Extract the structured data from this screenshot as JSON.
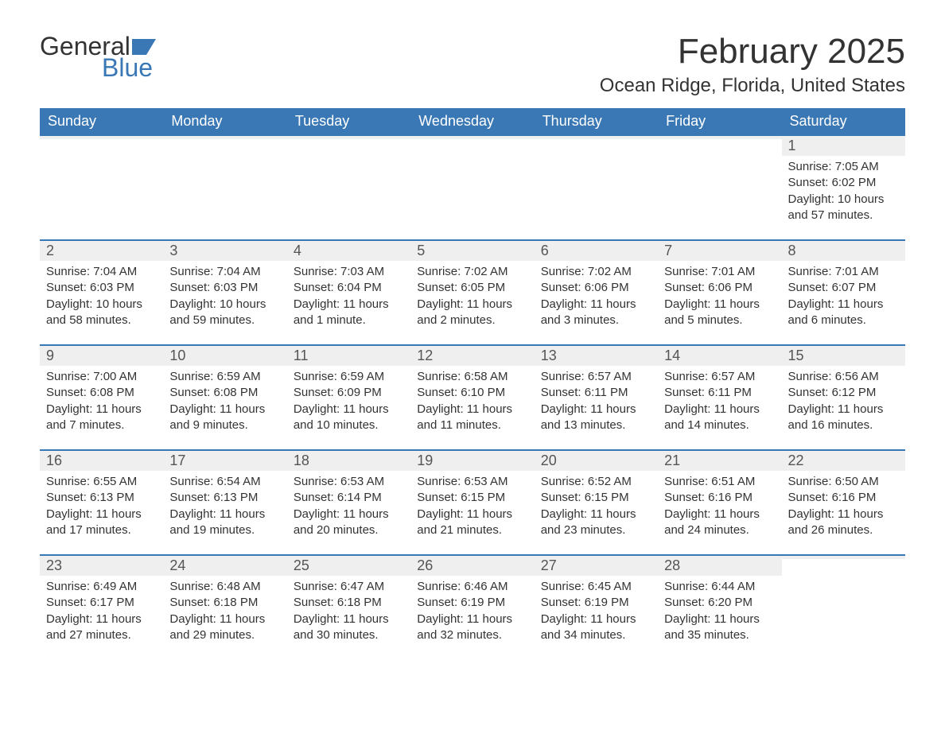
{
  "brand": {
    "word1": "General",
    "word2": "Blue",
    "flag_color": "#3a78b5"
  },
  "title": "February 2025",
  "location": "Ocean Ridge, Florida, United States",
  "colors": {
    "header_bg": "#3a78b5",
    "header_text": "#ffffff",
    "daynum_bg": "#efefef",
    "row_border": "#3a78b5",
    "body_text": "#333333"
  },
  "weekdays": [
    "Sunday",
    "Monday",
    "Tuesday",
    "Wednesday",
    "Thursday",
    "Friday",
    "Saturday"
  ],
  "weeks": [
    [
      {
        "empty": true
      },
      {
        "empty": true
      },
      {
        "empty": true
      },
      {
        "empty": true
      },
      {
        "empty": true
      },
      {
        "empty": true
      },
      {
        "day": "1",
        "sunrise": "Sunrise: 7:05 AM",
        "sunset": "Sunset: 6:02 PM",
        "daylight": "Daylight: 10 hours and 57 minutes."
      }
    ],
    [
      {
        "day": "2",
        "sunrise": "Sunrise: 7:04 AM",
        "sunset": "Sunset: 6:03 PM",
        "daylight": "Daylight: 10 hours and 58 minutes."
      },
      {
        "day": "3",
        "sunrise": "Sunrise: 7:04 AM",
        "sunset": "Sunset: 6:03 PM",
        "daylight": "Daylight: 10 hours and 59 minutes."
      },
      {
        "day": "4",
        "sunrise": "Sunrise: 7:03 AM",
        "sunset": "Sunset: 6:04 PM",
        "daylight": "Daylight: 11 hours and 1 minute."
      },
      {
        "day": "5",
        "sunrise": "Sunrise: 7:02 AM",
        "sunset": "Sunset: 6:05 PM",
        "daylight": "Daylight: 11 hours and 2 minutes."
      },
      {
        "day": "6",
        "sunrise": "Sunrise: 7:02 AM",
        "sunset": "Sunset: 6:06 PM",
        "daylight": "Daylight: 11 hours and 3 minutes."
      },
      {
        "day": "7",
        "sunrise": "Sunrise: 7:01 AM",
        "sunset": "Sunset: 6:06 PM",
        "daylight": "Daylight: 11 hours and 5 minutes."
      },
      {
        "day": "8",
        "sunrise": "Sunrise: 7:01 AM",
        "sunset": "Sunset: 6:07 PM",
        "daylight": "Daylight: 11 hours and 6 minutes."
      }
    ],
    [
      {
        "day": "9",
        "sunrise": "Sunrise: 7:00 AM",
        "sunset": "Sunset: 6:08 PM",
        "daylight": "Daylight: 11 hours and 7 minutes."
      },
      {
        "day": "10",
        "sunrise": "Sunrise: 6:59 AM",
        "sunset": "Sunset: 6:08 PM",
        "daylight": "Daylight: 11 hours and 9 minutes."
      },
      {
        "day": "11",
        "sunrise": "Sunrise: 6:59 AM",
        "sunset": "Sunset: 6:09 PM",
        "daylight": "Daylight: 11 hours and 10 minutes."
      },
      {
        "day": "12",
        "sunrise": "Sunrise: 6:58 AM",
        "sunset": "Sunset: 6:10 PM",
        "daylight": "Daylight: 11 hours and 11 minutes."
      },
      {
        "day": "13",
        "sunrise": "Sunrise: 6:57 AM",
        "sunset": "Sunset: 6:11 PM",
        "daylight": "Daylight: 11 hours and 13 minutes."
      },
      {
        "day": "14",
        "sunrise": "Sunrise: 6:57 AM",
        "sunset": "Sunset: 6:11 PM",
        "daylight": "Daylight: 11 hours and 14 minutes."
      },
      {
        "day": "15",
        "sunrise": "Sunrise: 6:56 AM",
        "sunset": "Sunset: 6:12 PM",
        "daylight": "Daylight: 11 hours and 16 minutes."
      }
    ],
    [
      {
        "day": "16",
        "sunrise": "Sunrise: 6:55 AM",
        "sunset": "Sunset: 6:13 PM",
        "daylight": "Daylight: 11 hours and 17 minutes."
      },
      {
        "day": "17",
        "sunrise": "Sunrise: 6:54 AM",
        "sunset": "Sunset: 6:13 PM",
        "daylight": "Daylight: 11 hours and 19 minutes."
      },
      {
        "day": "18",
        "sunrise": "Sunrise: 6:53 AM",
        "sunset": "Sunset: 6:14 PM",
        "daylight": "Daylight: 11 hours and 20 minutes."
      },
      {
        "day": "19",
        "sunrise": "Sunrise: 6:53 AM",
        "sunset": "Sunset: 6:15 PM",
        "daylight": "Daylight: 11 hours and 21 minutes."
      },
      {
        "day": "20",
        "sunrise": "Sunrise: 6:52 AM",
        "sunset": "Sunset: 6:15 PM",
        "daylight": "Daylight: 11 hours and 23 minutes."
      },
      {
        "day": "21",
        "sunrise": "Sunrise: 6:51 AM",
        "sunset": "Sunset: 6:16 PM",
        "daylight": "Daylight: 11 hours and 24 minutes."
      },
      {
        "day": "22",
        "sunrise": "Sunrise: 6:50 AM",
        "sunset": "Sunset: 6:16 PM",
        "daylight": "Daylight: 11 hours and 26 minutes."
      }
    ],
    [
      {
        "day": "23",
        "sunrise": "Sunrise: 6:49 AM",
        "sunset": "Sunset: 6:17 PM",
        "daylight": "Daylight: 11 hours and 27 minutes."
      },
      {
        "day": "24",
        "sunrise": "Sunrise: 6:48 AM",
        "sunset": "Sunset: 6:18 PM",
        "daylight": "Daylight: 11 hours and 29 minutes."
      },
      {
        "day": "25",
        "sunrise": "Sunrise: 6:47 AM",
        "sunset": "Sunset: 6:18 PM",
        "daylight": "Daylight: 11 hours and 30 minutes."
      },
      {
        "day": "26",
        "sunrise": "Sunrise: 6:46 AM",
        "sunset": "Sunset: 6:19 PM",
        "daylight": "Daylight: 11 hours and 32 minutes."
      },
      {
        "day": "27",
        "sunrise": "Sunrise: 6:45 AM",
        "sunset": "Sunset: 6:19 PM",
        "daylight": "Daylight: 11 hours and 34 minutes."
      },
      {
        "day": "28",
        "sunrise": "Sunrise: 6:44 AM",
        "sunset": "Sunset: 6:20 PM",
        "daylight": "Daylight: 11 hours and 35 minutes."
      },
      {
        "empty": true
      }
    ]
  ]
}
